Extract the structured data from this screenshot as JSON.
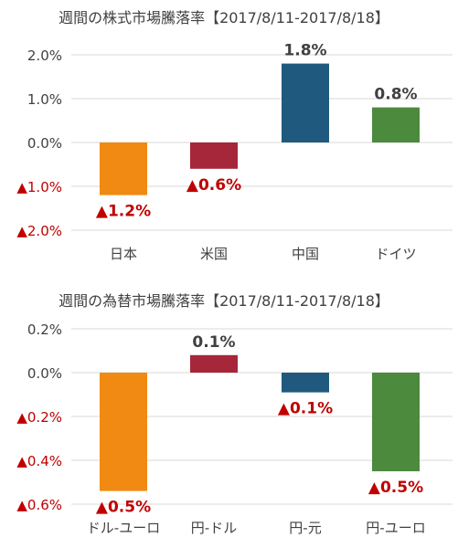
{
  "chart_data": [
    {
      "type": "bar",
      "title": "週間の株式市場騰落率【2017/8/11-2017/8/18】",
      "categories": [
        "日本",
        "米国",
        "中国",
        "ドイツ"
      ],
      "values": [
        -1.2,
        -0.6,
        1.8,
        0.8
      ],
      "data_labels": [
        "▲1.2%",
        "▲0.6%",
        "1.8%",
        "0.8%"
      ],
      "colors": [
        "#F08A12",
        "#A6263A",
        "#1F5A7E",
        "#4C8A3E"
      ],
      "ylim": [
        -2.0,
        2.0
      ],
      "yticks": [
        2.0,
        1.0,
        0.0,
        -1.0,
        -2.0
      ],
      "ytick_labels": [
        "2.0%",
        "1.0%",
        "0.0%",
        "▲1.0%",
        "▲2.0%"
      ],
      "grid": true
    },
    {
      "type": "bar",
      "title": "週間の為替市場騰落率【2017/8/11-2017/8/18】",
      "categories": [
        "ドル-ユーロ",
        "円-ドル",
        "円-元",
        "円-ユーロ"
      ],
      "values": [
        -0.54,
        0.08,
        -0.09,
        -0.45
      ],
      "data_labels": [
        "▲0.5%",
        "0.1%",
        "▲0.1%",
        "▲0.5%"
      ],
      "colors": [
        "#F08A12",
        "#A6263A",
        "#1F5A7E",
        "#4C8A3E"
      ],
      "ylim": [
        -0.6,
        0.2
      ],
      "yticks": [
        0.2,
        0.0,
        -0.2,
        -0.4,
        -0.6
      ],
      "ytick_labels": [
        "0.2%",
        "0.0%",
        "▲0.2%",
        "▲0.4%",
        "▲0.6%"
      ],
      "grid": true
    }
  ],
  "styles": {
    "negative_label_color": "#C00000",
    "positive_label_color": "#404040",
    "axis_text_color": "#404040",
    "grid_color": "#D9D9D9"
  }
}
